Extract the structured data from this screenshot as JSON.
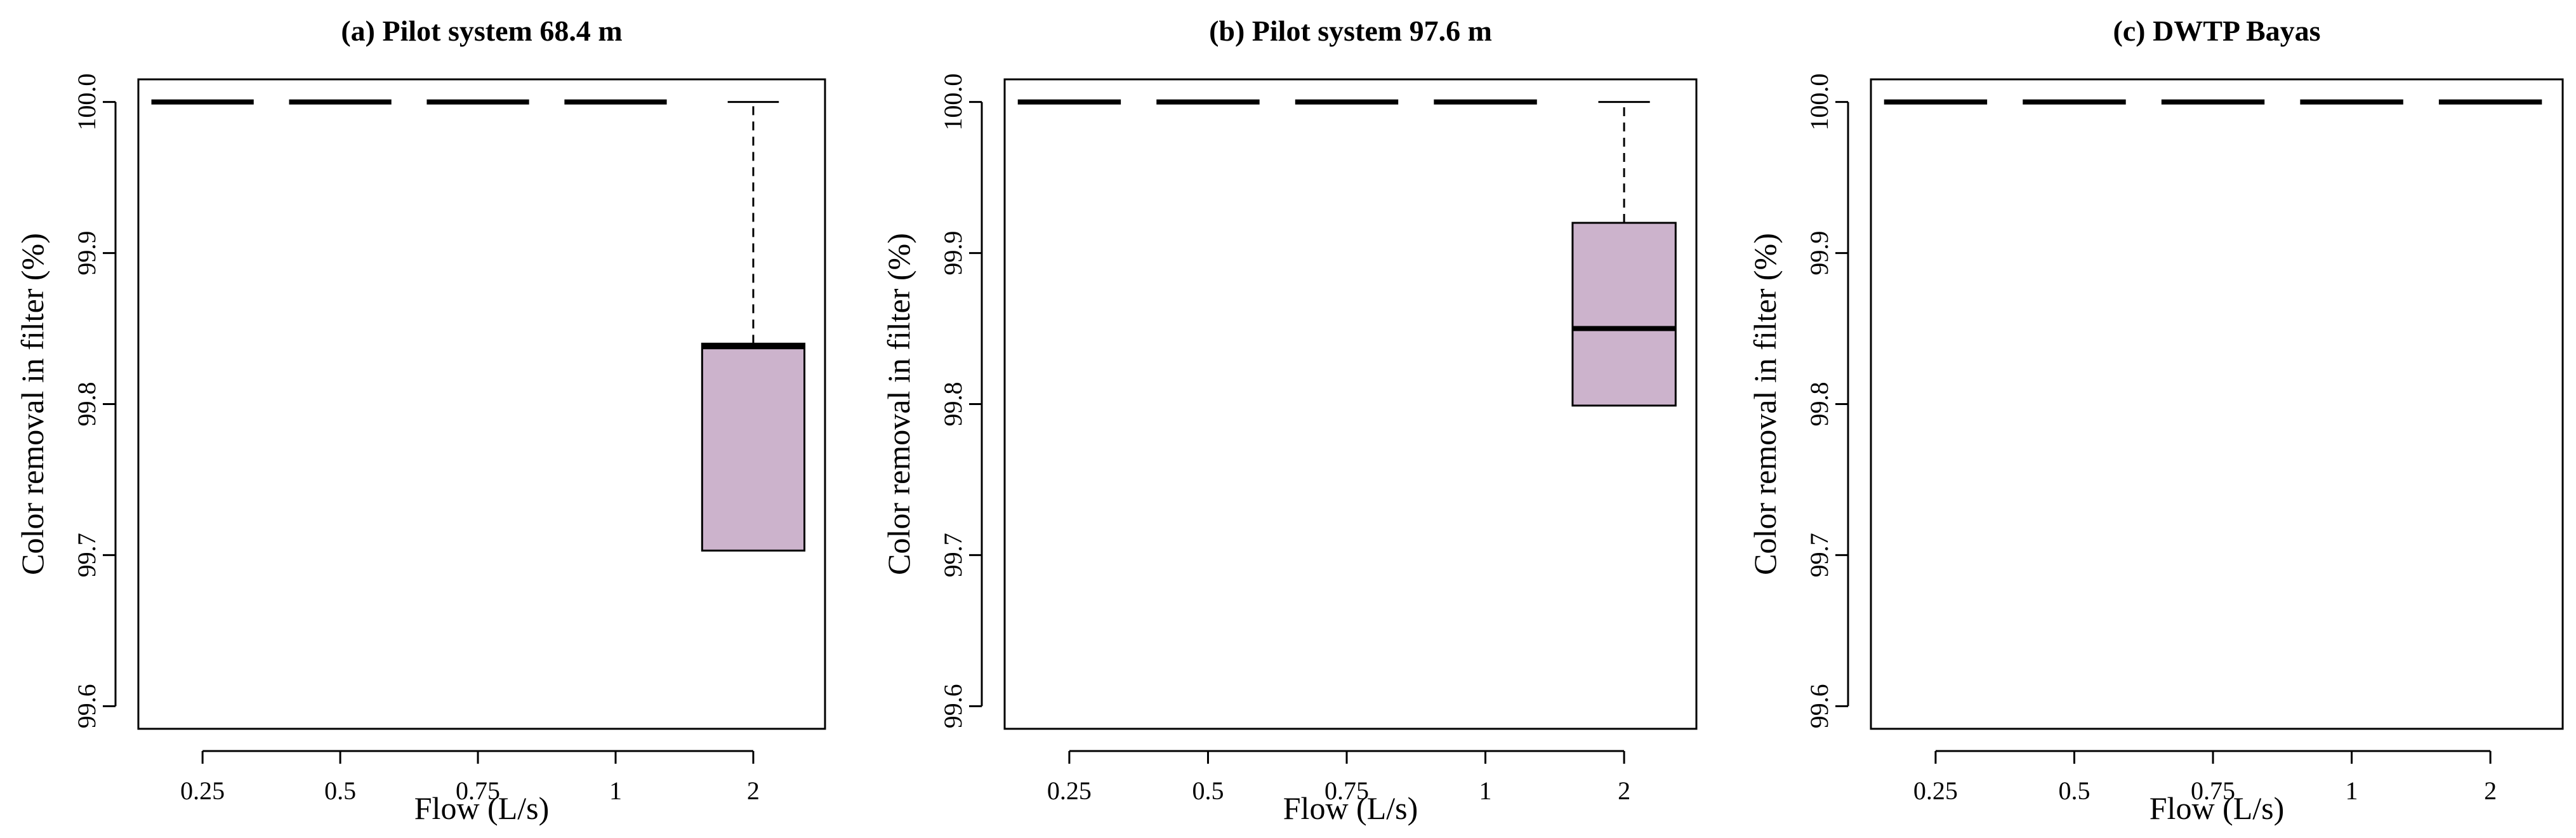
{
  "chart_data": [
    {
      "type": "box",
      "title": "(a) Pilot system 68.4 m",
      "xlabel": "Flow (L/s)",
      "ylabel": "Color removal in filter (%)",
      "categories": [
        "0.25",
        "0.5",
        "0.75",
        "1",
        "2"
      ],
      "y_ticks": [
        "99.6",
        "99.7",
        "99.8",
        "99.9",
        "100.0"
      ],
      "ylim": [
        99.585,
        100.015
      ],
      "fill_color": "#ccb3cc",
      "boxes": [
        {
          "category": "0.25",
          "min": 100.0,
          "q1": 100.0,
          "median": 100.0,
          "q3": 100.0,
          "max": 100.0
        },
        {
          "category": "0.5",
          "min": 100.0,
          "q1": 100.0,
          "median": 100.0,
          "q3": 100.0,
          "max": 100.0
        },
        {
          "category": "0.75",
          "min": 100.0,
          "q1": 100.0,
          "median": 100.0,
          "q3": 100.0,
          "max": 100.0
        },
        {
          "category": "1",
          "min": 100.0,
          "q1": 100.0,
          "median": 100.0,
          "q3": 100.0,
          "max": 100.0
        },
        {
          "category": "2",
          "min": 99.703,
          "q1": 99.703,
          "median": 99.838,
          "q3": 99.84,
          "max": 100.0
        }
      ]
    },
    {
      "type": "box",
      "title": "(b) Pilot system 97.6 m",
      "xlabel": "Flow (L/s)",
      "ylabel": "Color removal in filter (%)",
      "categories": [
        "0.25",
        "0.5",
        "0.75",
        "1",
        "2"
      ],
      "y_ticks": [
        "99.6",
        "99.7",
        "99.8",
        "99.9",
        "100.0"
      ],
      "ylim": [
        99.585,
        100.015
      ],
      "fill_color": "#ccb3cc",
      "boxes": [
        {
          "category": "0.25",
          "min": 100.0,
          "q1": 100.0,
          "median": 100.0,
          "q3": 100.0,
          "max": 100.0
        },
        {
          "category": "0.5",
          "min": 100.0,
          "q1": 100.0,
          "median": 100.0,
          "q3": 100.0,
          "max": 100.0
        },
        {
          "category": "0.75",
          "min": 100.0,
          "q1": 100.0,
          "median": 100.0,
          "q3": 100.0,
          "max": 100.0
        },
        {
          "category": "1",
          "min": 100.0,
          "q1": 100.0,
          "median": 100.0,
          "q3": 100.0,
          "max": 100.0
        },
        {
          "category": "2",
          "min": 99.799,
          "q1": 99.799,
          "median": 99.85,
          "q3": 99.92,
          "max": 100.0
        }
      ]
    },
    {
      "type": "box",
      "title": "(c) DWTP Bayas",
      "xlabel": "Flow (L/s)",
      "ylabel": "Color removal in filter (%)",
      "categories": [
        "0.25",
        "0.5",
        "0.75",
        "1",
        "2"
      ],
      "y_ticks": [
        "99.6",
        "99.7",
        "99.8",
        "99.9",
        "100.0"
      ],
      "ylim": [
        99.585,
        100.015
      ],
      "fill_color": "#ccb3cc",
      "boxes": [
        {
          "category": "0.25",
          "min": 100.0,
          "q1": 100.0,
          "median": 100.0,
          "q3": 100.0,
          "max": 100.0
        },
        {
          "category": "0.5",
          "min": 100.0,
          "q1": 100.0,
          "median": 100.0,
          "q3": 100.0,
          "max": 100.0
        },
        {
          "category": "0.75",
          "min": 100.0,
          "q1": 100.0,
          "median": 100.0,
          "q3": 100.0,
          "max": 100.0
        },
        {
          "category": "1",
          "min": 100.0,
          "q1": 100.0,
          "median": 100.0,
          "q3": 100.0,
          "max": 100.0
        },
        {
          "category": "2",
          "min": 100.0,
          "q1": 100.0,
          "median": 100.0,
          "q3": 100.0,
          "max": 100.0
        }
      ]
    }
  ]
}
